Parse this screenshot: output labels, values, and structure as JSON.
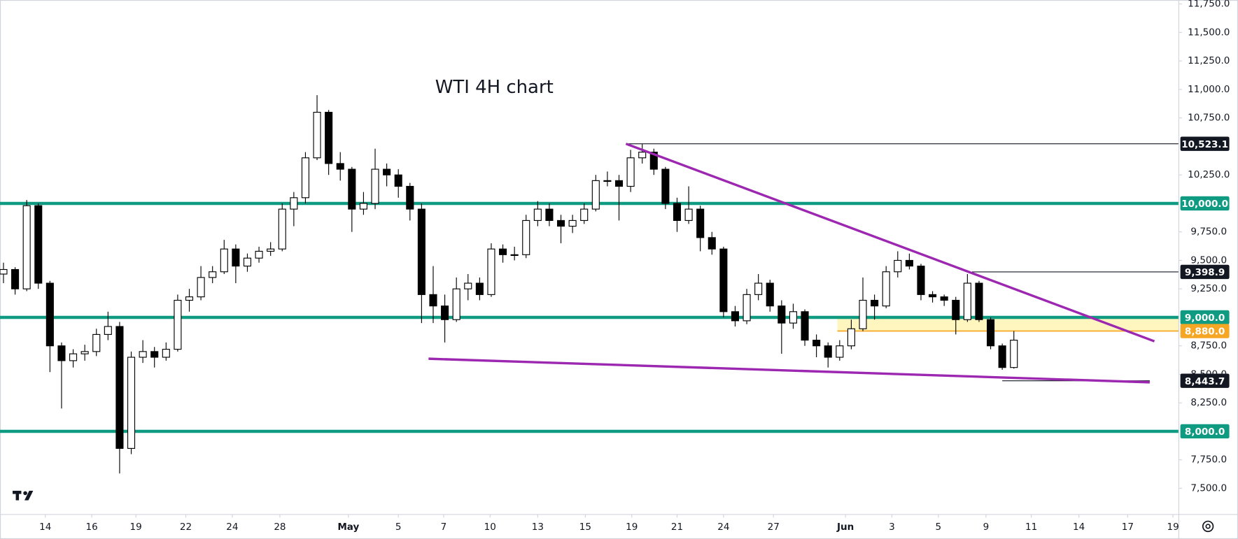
{
  "chart_data": {
    "type": "candlestick",
    "title": "WTI 4H chart",
    "open": [
      9380,
      9420,
      9250,
      9980,
      9300,
      8750,
      8620,
      8680,
      8700,
      8850,
      8920,
      7850,
      8650,
      8700,
      8650,
      8720,
      9150,
      9180,
      9350,
      9400,
      9600,
      9450,
      9520,
      9580,
      9600,
      9950,
      10050,
      10400,
      10800,
      10350,
      10300,
      9950,
      10000,
      10300,
      10250,
      10150,
      9950,
      9200,
      9100,
      8980,
      9250,
      9300,
      9200,
      9600,
      9550,
      9550,
      9850,
      9950,
      9850,
      9800,
      9850,
      9950,
      10200,
      10200,
      10150,
      10400,
      10450,
      10300,
      10000,
      9850,
      9950,
      9700,
      9600,
      9050,
      8970,
      9200,
      9300,
      9100,
      8950,
      9050,
      8800,
      8750,
      8650,
      8750,
      8900,
      9150,
      9100,
      9400,
      9500,
      9450,
      9200,
      9180,
      9150,
      8980,
      9300,
      8980,
      8750,
      8560
    ],
    "high": [
      9480,
      9440,
      10030,
      10000,
      9320,
      8780,
      8720,
      8760,
      8900,
      9050,
      8960,
      8700,
      8800,
      8740,
      8780,
      9200,
      9250,
      9450,
      9450,
      9680,
      9640,
      9560,
      9620,
      9660,
      10000,
      10100,
      10450,
      10950,
      10820,
      10450,
      10320,
      10100,
      10480,
      10350,
      10300,
      10180,
      10000,
      9450,
      9200,
      9350,
      9380,
      9350,
      9650,
      9640,
      9620,
      9900,
      10020,
      10000,
      9900,
      9900,
      10000,
      10250,
      10280,
      10250,
      10470,
      10520,
      10480,
      10320,
      10050,
      10150,
      9980,
      9750,
      9620,
      9100,
      9250,
      9380,
      9330,
      9150,
      9120,
      9070,
      8850,
      8780,
      8800,
      8980,
      9350,
      9200,
      9450,
      9580,
      9560,
      9470,
      9230,
      9200,
      9180,
      9380,
      9320,
      9000,
      8770,
      8880
    ],
    "low": [
      9300,
      9200,
      9230,
      9250,
      8520,
      8200,
      8560,
      8620,
      8660,
      8800,
      7630,
      7800,
      8600,
      8560,
      8620,
      8700,
      9050,
      9150,
      9300,
      9380,
      9300,
      9400,
      9480,
      9540,
      9580,
      9800,
      10000,
      10380,
      10250,
      10200,
      9750,
      9900,
      9950,
      10150,
      10050,
      9850,
      8950,
      8950,
      8780,
      8960,
      9150,
      9150,
      9180,
      9480,
      9500,
      9520,
      9800,
      9800,
      9650,
      9740,
      9820,
      9930,
      10150,
      9850,
      10100,
      10350,
      10250,
      9950,
      9750,
      9820,
      9580,
      9550,
      9000,
      8920,
      8940,
      9150,
      9050,
      8680,
      8900,
      8750,
      8650,
      8560,
      8620,
      8720,
      8880,
      8980,
      9080,
      9350,
      9420,
      9150,
      9130,
      9100,
      8850,
      8960,
      8960,
      8720,
      8540,
      8550
    ],
    "close": [
      9420,
      9250,
      9980,
      9300,
      8750,
      8620,
      8680,
      8700,
      8850,
      8920,
      7850,
      8650,
      8700,
      8650,
      8720,
      9150,
      9180,
      9350,
      9400,
      9600,
      9450,
      9520,
      9580,
      9600,
      9950,
      10050,
      10400,
      10800,
      10350,
      10300,
      9950,
      10000,
      10300,
      10250,
      10150,
      9950,
      9200,
      9100,
      8980,
      9250,
      9300,
      9200,
      9600,
      9550,
      9550,
      9850,
      9950,
      9850,
      9800,
      9850,
      9950,
      10200,
      10200,
      10150,
      10400,
      10450,
      10300,
      10000,
      9850,
      9950,
      9700,
      9600,
      9050,
      8970,
      9200,
      9300,
      9100,
      8950,
      9050,
      8800,
      8750,
      8650,
      8750,
      8900,
      9150,
      9100,
      9400,
      9500,
      9450,
      9200,
      9180,
      9150,
      8980,
      9300,
      8980,
      8750,
      8560,
      8800
    ],
    "up_color": "#ffffff",
    "down_color": "#000000",
    "xlim": [
      -0.3,
      101.2
    ],
    "xticks": [
      {
        "value": 3.6,
        "label": "14"
      },
      {
        "value": 7.6,
        "label": "16"
      },
      {
        "value": 11.4,
        "label": "19"
      },
      {
        "value": 15.7,
        "label": "22"
      },
      {
        "value": 19.7,
        "label": "24"
      },
      {
        "value": 23.8,
        "label": "28"
      },
      {
        "value": 29.7,
        "label": "May"
      },
      {
        "value": 34.0,
        "label": "5"
      },
      {
        "value": 37.9,
        "label": "7"
      },
      {
        "value": 41.9,
        "label": "10"
      },
      {
        "value": 46.0,
        "label": "13"
      },
      {
        "value": 50.1,
        "label": "15"
      },
      {
        "value": 54.1,
        "label": "19"
      },
      {
        "value": 58.0,
        "label": "21"
      },
      {
        "value": 62.0,
        "label": "24"
      },
      {
        "value": 66.3,
        "label": "27"
      },
      {
        "value": 72.5,
        "label": "Jun"
      },
      {
        "value": 76.5,
        "label": "3"
      },
      {
        "value": 80.5,
        "label": "5"
      },
      {
        "value": 84.6,
        "label": "9"
      },
      {
        "value": 88.5,
        "label": "11"
      },
      {
        "value": 92.6,
        "label": "14"
      },
      {
        "value": 96.8,
        "label": "17"
      },
      {
        "value": 100.7,
        "label": "19"
      }
    ],
    "ylim": [
      7270,
      11785
    ],
    "yticks": [
      {
        "value": 11750,
        "label": "11,750.0"
      },
      {
        "value": 11500,
        "label": "11,500.0"
      },
      {
        "value": 11250,
        "label": "11,250.0"
      },
      {
        "value": 11000,
        "label": "11,000.0"
      },
      {
        "value": 10750,
        "label": "10,750.0"
      },
      {
        "value": 10250,
        "label": "10,250.0"
      },
      {
        "value": 9750,
        "label": "9,750.0"
      },
      {
        "value": 9500,
        "label": "9,500.0"
      },
      {
        "value": 9250,
        "label": "9,250.0"
      },
      {
        "value": 8750,
        "label": "8,750.0"
      },
      {
        "value": 8500,
        "label": "8,500.0"
      },
      {
        "value": 8250,
        "label": "8,250.0"
      },
      {
        "value": 7750,
        "label": "7,750.0"
      },
      {
        "value": 7500,
        "label": "7,500.0"
      }
    ],
    "zone": {
      "from": 8880,
      "to": 9000,
      "start": 71.8,
      "color": "#fff6bf",
      "line_color": "#f5a623",
      "label": "8,880.0"
    },
    "levels": [
      {
        "value": 10000,
        "label": "10,000.0",
        "color": "#0f9a82"
      },
      {
        "value": 9000,
        "label": "9,000.0",
        "color": "#0f9a82"
      },
      {
        "value": 8000,
        "label": "8,000.0",
        "color": "#0f9a82"
      }
    ],
    "markers": [
      {
        "value": 10523.1,
        "label": "10,523.1",
        "start": 53.6
      },
      {
        "value": 9398.9,
        "label": "9,398.9",
        "start": 83.4
      },
      {
        "value": 8443.7,
        "label": "8,443.7",
        "start": 86.0,
        "end": 98.7
      }
    ],
    "trendlines": [
      {
        "x": [
          53.6,
          99.1
        ],
        "y": [
          10523.1,
          8790
        ],
        "color": "#9c27b0"
      },
      {
        "x": [
          36.6,
          98.7
        ],
        "y": [
          8637,
          8430
        ],
        "color": "#9c27b0"
      }
    ]
  }
}
